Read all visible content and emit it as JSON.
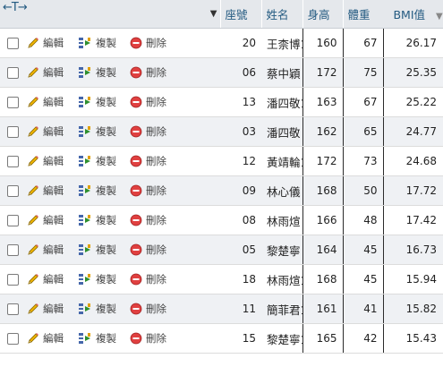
{
  "header": {
    "nav_arrows": "←T→",
    "sort_triangle": "▼",
    "columns": [
      "座號",
      "姓名",
      "身高",
      "體重",
      "BMI值"
    ],
    "sort_indicator": "▼",
    "sort_order": "1"
  },
  "actions": {
    "edit": "編輯",
    "copy": "複製",
    "delete": "刪除"
  },
  "rows": [
    {
      "seat": "20",
      "name": "王柰博1",
      "height": "160",
      "weight": "67",
      "bmi": "26.17"
    },
    {
      "seat": "06",
      "name": "蔡中穎",
      "height": "172",
      "weight": "75",
      "bmi": "25.35"
    },
    {
      "seat": "13",
      "name": "潘四敬1",
      "height": "163",
      "weight": "67",
      "bmi": "25.22"
    },
    {
      "seat": "03",
      "name": "潘四敬",
      "height": "162",
      "weight": "65",
      "bmi": "24.77"
    },
    {
      "seat": "12",
      "name": "黃靖輪1",
      "height": "172",
      "weight": "73",
      "bmi": "24.68"
    },
    {
      "seat": "09",
      "name": "林心儀",
      "height": "168",
      "weight": "50",
      "bmi": "17.72"
    },
    {
      "seat": "08",
      "name": "林雨煊",
      "height": "166",
      "weight": "48",
      "bmi": "17.42"
    },
    {
      "seat": "05",
      "name": "黎楚寧",
      "height": "164",
      "weight": "45",
      "bmi": "16.73"
    },
    {
      "seat": "18",
      "name": "林雨煊1",
      "height": "168",
      "weight": "45",
      "bmi": "15.94"
    },
    {
      "seat": "11",
      "name": "簡菲君1",
      "height": "161",
      "weight": "41",
      "bmi": "15.82"
    },
    {
      "seat": "15",
      "name": "黎楚寧1",
      "height": "165",
      "weight": "42",
      "bmi": "15.43"
    }
  ]
}
